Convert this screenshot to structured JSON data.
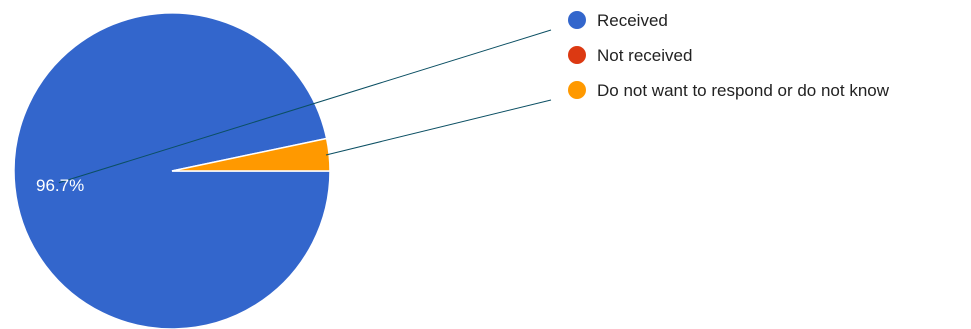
{
  "chart_data": {
    "type": "pie",
    "slices": [
      {
        "label": "Received",
        "value": 96.7,
        "color": "#3366cc"
      },
      {
        "label": "Not received",
        "value": 0.0,
        "color": "#dc3912"
      },
      {
        "label": "Do not want to respond or do not know",
        "value": 3.3,
        "color": "#ff9900"
      }
    ],
    "data_labels": [
      "96.7%"
    ],
    "legend_position": "right",
    "start_angle": "90-deg-from-right-clockwise"
  }
}
